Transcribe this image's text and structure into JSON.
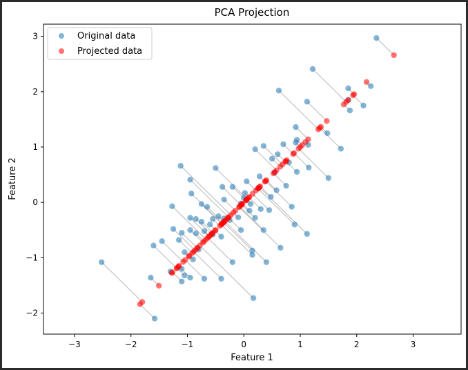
{
  "chart_data": {
    "type": "scatter",
    "title": "PCA Projection",
    "xlabel": "Feature 1",
    "ylabel": "Feature 2",
    "xlim": [
      -3.55,
      3.85
    ],
    "ylim": [
      -2.38,
      3.22
    ],
    "xticks": [
      -3,
      -2,
      -1,
      0,
      1,
      2,
      3
    ],
    "yticks": [
      -2,
      -1,
      0,
      1,
      2,
      3
    ],
    "legend_position": "top-left",
    "series": [
      {
        "name": "Original data",
        "color": "#1f77b4",
        "alpha": 0.55
      },
      {
        "name": "Projected data",
        "color": "#ff0000",
        "alpha": 0.55
      }
    ],
    "connector_color": "#999999",
    "component_direction": [
      0.707,
      0.707
    ],
    "original_points": [
      [
        2.35,
        2.97
      ],
      [
        1.22,
        2.41
      ],
      [
        0.62,
        2.02
      ],
      [
        1.12,
        1.82
      ],
      [
        1.85,
        2.06
      ],
      [
        2.25,
        2.1
      ],
      [
        2.12,
        1.75
      ],
      [
        1.85,
        1.85
      ],
      [
        1.88,
        1.66
      ],
      [
        0.92,
        1.36
      ],
      [
        1.48,
        1.25
      ],
      [
        1.72,
        0.97
      ],
      [
        1.14,
        1.04
      ],
      [
        0.94,
        1.13
      ],
      [
        0.92,
        1.08
      ],
      [
        0.7,
        1.05
      ],
      [
        0.35,
        1.02
      ],
      [
        0.2,
        0.96
      ],
      [
        0.6,
        0.87
      ],
      [
        0.5,
        0.79
      ],
      [
        0.8,
        0.72
      ],
      [
        0.94,
        0.55
      ],
      [
        1.15,
        0.63
      ],
      [
        1.5,
        0.44
      ],
      [
        0.55,
        0.54
      ],
      [
        0.28,
        0.47
      ],
      [
        0.75,
        0.3
      ],
      [
        0.58,
        0.22
      ],
      [
        0.26,
        0.26
      ],
      [
        0.05,
        0.38
      ],
      [
        0.48,
        0.1
      ],
      [
        0.02,
        0.17
      ],
      [
        0.0,
        0.08
      ],
      [
        -0.5,
        0.62
      ],
      [
        -1.12,
        0.66
      ],
      [
        -0.95,
        0.41
      ],
      [
        -0.38,
        0.28
      ],
      [
        -0.93,
        0.16
      ],
      [
        -0.75,
        -0.03
      ],
      [
        -0.65,
        -0.08
      ],
      [
        -0.35,
        0.05
      ],
      [
        -0.2,
        0.28
      ],
      [
        -0.05,
        -0.02
      ],
      [
        0.12,
        -0.03
      ],
      [
        0.3,
        -0.12
      ],
      [
        0.45,
        -0.14
      ],
      [
        0.85,
        -0.08
      ],
      [
        0.1,
        -0.15
      ],
      [
        0.2,
        -0.28
      ],
      [
        -0.1,
        -0.27
      ],
      [
        -0.25,
        -0.32
      ],
      [
        -0.35,
        -0.29
      ],
      [
        -0.45,
        -0.25
      ],
      [
        -0.55,
        -0.3
      ],
      [
        -0.85,
        -0.3
      ],
      [
        -0.95,
        -0.28
      ],
      [
        -1.27,
        -0.07
      ],
      [
        -0.75,
        -0.35
      ],
      [
        -0.6,
        -0.4
      ],
      [
        -0.7,
        -0.52
      ],
      [
        -0.95,
        -0.5
      ],
      [
        -1.1,
        -0.55
      ],
      [
        -1.25,
        -0.48
      ],
      [
        -0.05,
        -0.5
      ],
      [
        0.35,
        -0.5
      ],
      [
        0.9,
        -0.4
      ],
      [
        1.12,
        -0.57
      ],
      [
        -0.4,
        -0.62
      ],
      [
        -0.55,
        -0.58
      ],
      [
        -0.85,
        -0.56
      ],
      [
        -1.15,
        -0.68
      ],
      [
        -1.45,
        -0.7
      ],
      [
        -1.6,
        -0.78
      ],
      [
        0.15,
        -0.87
      ],
      [
        0.65,
        -0.82
      ],
      [
        -0.8,
        -0.85
      ],
      [
        -1.05,
        -0.9
      ],
      [
        0.15,
        -0.95
      ],
      [
        -0.9,
        -1.03
      ],
      [
        -0.2,
        -1.08
      ],
      [
        0.4,
        -1.08
      ],
      [
        -1.1,
        -1.2
      ],
      [
        -1.3,
        -1.25
      ],
      [
        -1.05,
        -1.32
      ],
      [
        -1.65,
        -1.36
      ],
      [
        -0.95,
        -1.36
      ],
      [
        -0.7,
        -1.38
      ],
      [
        -0.4,
        -1.38
      ],
      [
        -1.1,
        -1.43
      ],
      [
        -2.52,
        -1.08
      ],
      [
        0.17,
        -1.73
      ],
      [
        -1.58,
        -2.1
      ]
    ]
  }
}
